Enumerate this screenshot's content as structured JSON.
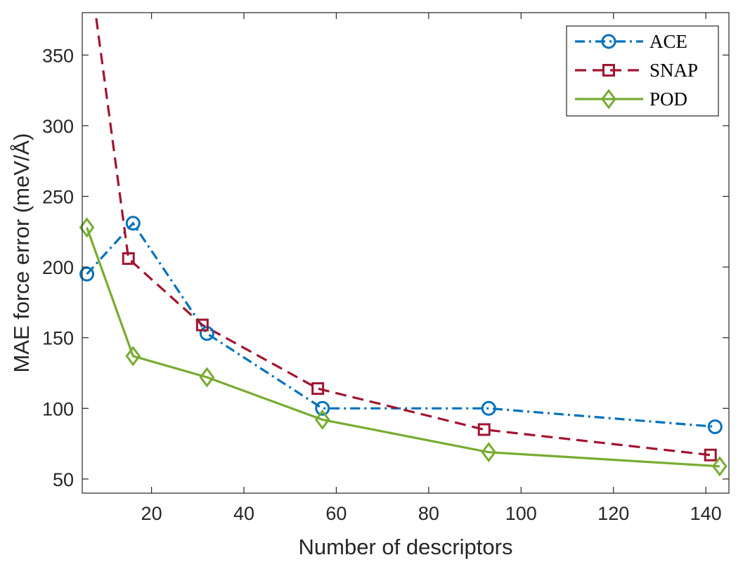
{
  "chart_data": {
    "type": "line",
    "xlabel": "Number of descriptors",
    "ylabel": "MAE force error (meV/Å)",
    "xlim": [
      5,
      145
    ],
    "ylim": [
      40,
      380
    ],
    "xticks": [
      20,
      40,
      60,
      80,
      100,
      120,
      140
    ],
    "yticks": [
      50,
      100,
      150,
      200,
      250,
      300,
      350
    ],
    "grid": false,
    "legend_position": "top-right",
    "series": [
      {
        "name": "ACE",
        "color": "#0072BD",
        "line_style": "dash-dot",
        "marker": "circle",
        "x": [
          6,
          16,
          32,
          57,
          93,
          142
        ],
        "y": [
          195,
          231,
          153,
          100,
          100,
          87
        ]
      },
      {
        "name": "SNAP",
        "color": "#A2142F",
        "line_style": "dashed",
        "marker": "square",
        "x": [
          5,
          15,
          31,
          56,
          92,
          141
        ],
        "y": [
          450,
          206,
          159,
          114,
          85,
          67
        ]
      },
      {
        "name": "POD",
        "color": "#77AC30",
        "line_style": "solid",
        "marker": "diamond",
        "x": [
          6,
          16,
          32,
          57,
          93,
          143
        ],
        "y": [
          228,
          137,
          122,
          92,
          69,
          59
        ]
      }
    ]
  }
}
